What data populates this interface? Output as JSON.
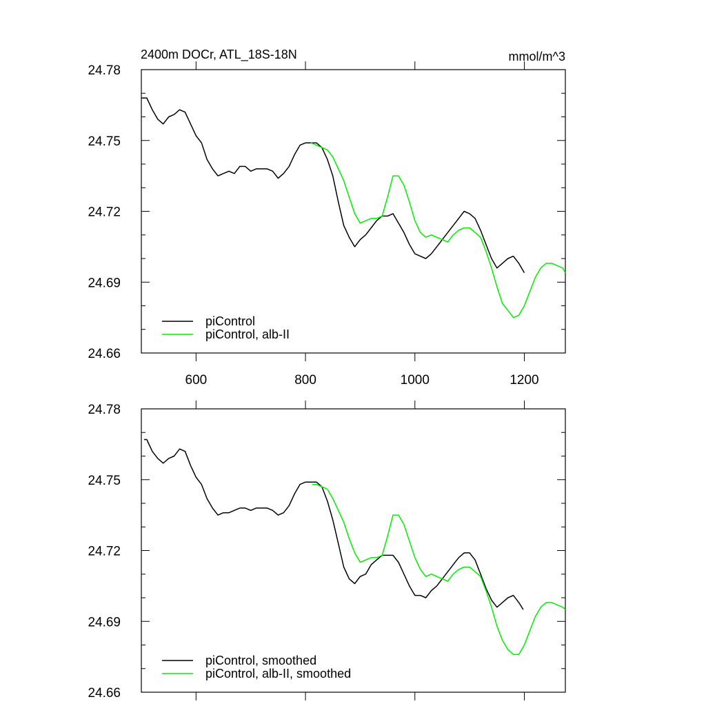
{
  "chart_data": [
    {
      "type": "line",
      "title_left": "2400m DOCr, ATL_18S-18N",
      "title_right": "mmol/m^3",
      "xlim": [
        500,
        1275
      ],
      "ylim": [
        24.66,
        24.78
      ],
      "x_ticks": [
        600,
        800,
        1000,
        1200
      ],
      "x_tick_labels": [
        "600",
        "800",
        "1000",
        "1200"
      ],
      "y_ticks": [
        24.66,
        24.69,
        24.72,
        24.75,
        24.78
      ],
      "y_tick_labels": [
        "24.66",
        "24.69",
        "24.72",
        "24.75",
        "24.78"
      ],
      "legend_position": "bottom-left",
      "series": [
        {
          "name": "piControl",
          "color": "#000000",
          "x": [
            500,
            510,
            520,
            530,
            540,
            550,
            560,
            570,
            580,
            590,
            600,
            610,
            620,
            630,
            640,
            650,
            660,
            670,
            680,
            690,
            700,
            710,
            720,
            730,
            740,
            750,
            760,
            770,
            780,
            790,
            800,
            810,
            820,
            830,
            840,
            850,
            860,
            870,
            880,
            890,
            900,
            910,
            920,
            930,
            940,
            950,
            960,
            970,
            980,
            990,
            1000,
            1010,
            1020,
            1030,
            1040,
            1050,
            1060,
            1070,
            1080,
            1090,
            1100,
            1110,
            1120,
            1130,
            1140,
            1150,
            1160,
            1170,
            1180,
            1190,
            1200
          ],
          "y": [
            24.768,
            24.768,
            24.763,
            24.759,
            24.757,
            24.76,
            24.761,
            24.763,
            24.762,
            24.757,
            24.752,
            24.749,
            24.742,
            24.738,
            24.735,
            24.736,
            24.737,
            24.736,
            24.739,
            24.739,
            24.737,
            24.738,
            24.738,
            24.738,
            24.737,
            24.734,
            24.736,
            24.739,
            24.744,
            24.748,
            24.749,
            24.749,
            24.749,
            24.747,
            24.742,
            24.735,
            24.724,
            24.714,
            24.709,
            24.705,
            24.708,
            24.71,
            24.713,
            24.716,
            24.718,
            24.718,
            24.719,
            24.715,
            24.711,
            24.706,
            24.702,
            24.701,
            24.7,
            24.702,
            24.705,
            24.708,
            24.711,
            24.714,
            24.717,
            24.72,
            24.719,
            24.717,
            24.712,
            24.706,
            24.7,
            24.696,
            24.698,
            24.7,
            24.701,
            24.698,
            24.694
          ]
        },
        {
          "name": "piControl, alb-II",
          "color": "#00ee00",
          "x": [
            810,
            820,
            830,
            840,
            850,
            860,
            870,
            880,
            890,
            900,
            910,
            920,
            930,
            940,
            950,
            960,
            970,
            980,
            990,
            1000,
            1010,
            1020,
            1030,
            1040,
            1050,
            1060,
            1070,
            1080,
            1090,
            1100,
            1110,
            1120,
            1130,
            1140,
            1150,
            1160,
            1170,
            1180,
            1190,
            1200,
            1210,
            1220,
            1230,
            1240,
            1250,
            1260,
            1270,
            1275
          ],
          "y": [
            24.749,
            24.748,
            24.747,
            24.746,
            24.743,
            24.738,
            24.733,
            24.726,
            24.719,
            24.715,
            24.716,
            24.717,
            24.717,
            24.718,
            24.726,
            24.735,
            24.735,
            24.731,
            24.724,
            24.716,
            24.711,
            24.709,
            24.71,
            24.709,
            24.708,
            24.707,
            24.71,
            24.712,
            24.713,
            24.713,
            24.711,
            24.709,
            24.703,
            24.696,
            24.688,
            24.681,
            24.678,
            24.675,
            24.676,
            24.68,
            24.686,
            24.692,
            24.696,
            24.698,
            24.698,
            24.697,
            24.696,
            24.694
          ]
        }
      ]
    },
    {
      "type": "line",
      "xlim": [
        500,
        1275
      ],
      "ylim": [
        24.66,
        24.78
      ],
      "x_ticks": [
        600,
        800,
        1000,
        1200
      ],
      "x_tick_labels": [],
      "y_ticks": [
        24.66,
        24.69,
        24.72,
        24.75,
        24.78
      ],
      "y_tick_labels": [
        "24.66",
        "24.69",
        "24.72",
        "24.75",
        "24.78"
      ],
      "legend_position": "bottom-left",
      "series": [
        {
          "name": "piControl, smoothed",
          "color": "#000000",
          "x": [
            505,
            510,
            520,
            530,
            540,
            550,
            560,
            570,
            580,
            590,
            600,
            610,
            620,
            630,
            640,
            650,
            660,
            670,
            680,
            690,
            700,
            710,
            720,
            730,
            740,
            750,
            760,
            770,
            780,
            790,
            800,
            810,
            820,
            830,
            840,
            850,
            860,
            870,
            880,
            890,
            900,
            910,
            920,
            930,
            940,
            950,
            960,
            970,
            980,
            990,
            1000,
            1010,
            1020,
            1030,
            1040,
            1050,
            1060,
            1070,
            1080,
            1090,
            1100,
            1110,
            1120,
            1130,
            1140,
            1150,
            1160,
            1170,
            1180,
            1190,
            1198
          ],
          "y": [
            24.767,
            24.767,
            24.762,
            24.759,
            24.757,
            24.759,
            24.76,
            24.763,
            24.762,
            24.756,
            24.751,
            24.748,
            24.742,
            24.738,
            24.735,
            24.736,
            24.736,
            24.737,
            24.738,
            24.738,
            24.737,
            24.738,
            24.738,
            24.738,
            24.737,
            24.735,
            24.736,
            24.739,
            24.744,
            24.748,
            24.749,
            24.749,
            24.749,
            24.747,
            24.741,
            24.733,
            24.723,
            24.713,
            24.708,
            24.706,
            24.709,
            24.71,
            24.714,
            24.716,
            24.718,
            24.718,
            24.718,
            24.715,
            24.71,
            24.705,
            24.701,
            24.701,
            24.7,
            24.703,
            24.705,
            24.708,
            24.711,
            24.714,
            24.717,
            24.719,
            24.719,
            24.716,
            24.71,
            24.704,
            24.699,
            24.696,
            24.698,
            24.7,
            24.701,
            24.698,
            24.695
          ]
        },
        {
          "name": "piControl, alb-II, smoothed",
          "color": "#00ee00",
          "x": [
            812,
            820,
            830,
            840,
            850,
            860,
            870,
            880,
            890,
            900,
            910,
            920,
            930,
            940,
            950,
            960,
            970,
            980,
            990,
            1000,
            1010,
            1020,
            1030,
            1040,
            1050,
            1060,
            1070,
            1080,
            1090,
            1100,
            1110,
            1120,
            1130,
            1140,
            1150,
            1160,
            1170,
            1180,
            1190,
            1200,
            1210,
            1220,
            1230,
            1240,
            1250,
            1260,
            1270,
            1275
          ],
          "y": [
            24.748,
            24.748,
            24.747,
            24.746,
            24.742,
            24.737,
            24.732,
            24.725,
            24.719,
            24.715,
            24.716,
            24.717,
            24.717,
            24.718,
            24.726,
            24.735,
            24.735,
            24.731,
            24.724,
            24.717,
            24.712,
            24.709,
            24.71,
            24.709,
            24.708,
            24.707,
            24.71,
            24.712,
            24.713,
            24.713,
            24.711,
            24.709,
            24.703,
            24.696,
            24.688,
            24.682,
            24.678,
            24.676,
            24.676,
            24.68,
            24.686,
            24.692,
            24.696,
            24.698,
            24.698,
            24.697,
            24.696,
            24.695
          ]
        }
      ]
    }
  ]
}
